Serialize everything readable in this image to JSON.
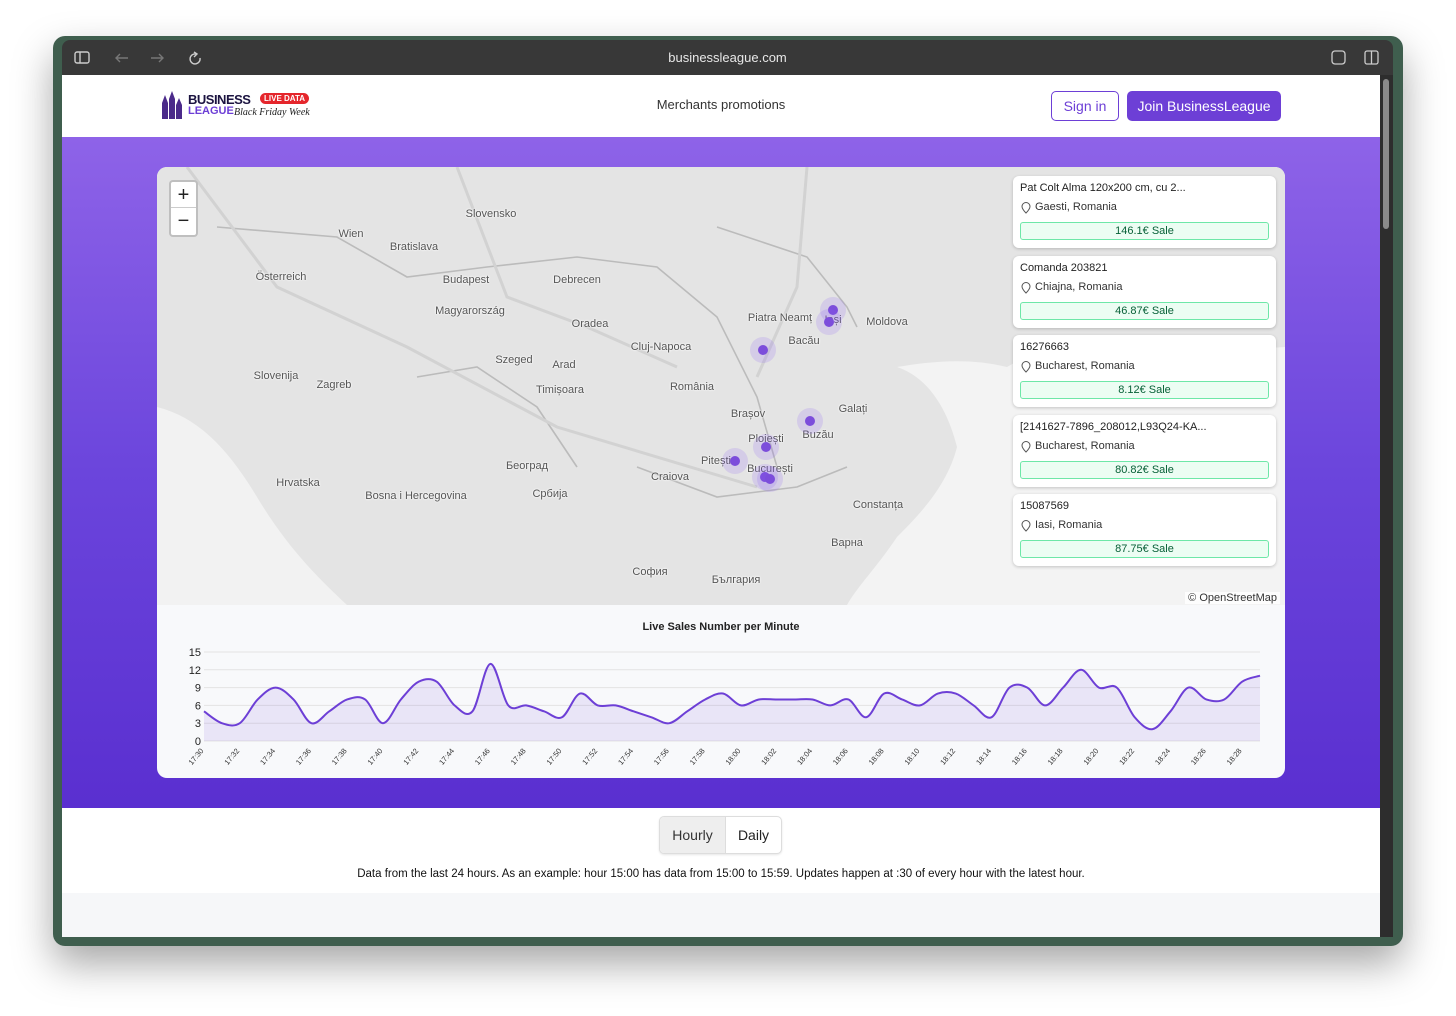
{
  "browser": {
    "url": "businessleague.com"
  },
  "header": {
    "logo": {
      "brand_top": "BUSINESS",
      "brand_bottom": "LEAGUE",
      "badge": "LIVE DATA",
      "tagline": "Black Friday Week"
    },
    "nav": "Merchants promotions",
    "sign_in": "Sign in",
    "join": "Join BusinessLeague"
  },
  "map": {
    "zoom_in": "+",
    "zoom_out": "−",
    "attribution": "© OpenStreetMap",
    "labels": [
      "Wien",
      "Bratislava",
      "Budapest",
      "Magyarország",
      "Slovensko",
      "Österreich",
      "Slovenija",
      "Zagreb",
      "Hrvatska",
      "Bosna i Hercegovina",
      "Београд",
      "Србија",
      "Cluj-Napoca",
      "România",
      "Brașov",
      "Ploiești",
      "București",
      "Craiova",
      "Constanța",
      "Galați",
      "Iași",
      "Moldova",
      "Timișoara",
      "Debrecen",
      "Szeged",
      "Варна",
      "София",
      "България",
      "Pitești",
      "Buzău",
      "Bacău",
      "Piatra Neamț",
      "Oradea",
      "Arad"
    ],
    "cards": [
      {
        "title": "Pat Colt Alma 120x200 cm, cu 2...",
        "location": "Gaesti, Romania",
        "amount": "146.1€ Sale"
      },
      {
        "title": "Comanda 203821",
        "location": "Chiajna, Romania",
        "amount": "46.87€ Sale"
      },
      {
        "title": "16276663",
        "location": "Bucharest, Romania",
        "amount": "8.12€ Sale"
      },
      {
        "title": "[2141627-7896_208012,L93Q24-KA...",
        "location": "Bucharest, Romania",
        "amount": "80.82€ Sale"
      },
      {
        "title": "15087569",
        "location": "Iasi, Romania",
        "amount": "87.75€ Sale"
      }
    ]
  },
  "chart_data": {
    "type": "line",
    "title": "Live Sales Number per Minute",
    "categories": [
      "17:30",
      null,
      "17:32",
      null,
      "17:34",
      null,
      "17:36",
      null,
      "17:38",
      null,
      "17:40",
      null,
      "17:42",
      null,
      "17:44",
      null,
      "17:46",
      null,
      "17:48",
      null,
      "17:50",
      null,
      "17:52",
      null,
      "17:54",
      null,
      "17:56",
      null,
      "17:58",
      null,
      "18:00",
      null,
      "18:02",
      null,
      "18:04",
      null,
      "18:06",
      null,
      "18:08",
      null,
      "18:10",
      null,
      "18:12",
      null,
      "18:14",
      null,
      "18:16",
      null,
      "18:18",
      null,
      "18:20",
      null,
      "18:22",
      null,
      "18:24",
      null,
      "18:26",
      null,
      "18:28",
      null
    ],
    "series": [
      {
        "name": "Sales",
        "color": "#6d3fd6",
        "values": [
          5,
          3,
          3,
          7,
          9,
          7,
          3,
          5,
          7,
          7,
          3,
          7,
          10,
          10,
          6,
          5,
          13,
          6,
          6,
          5,
          4,
          8,
          6,
          6,
          5,
          4,
          3,
          5,
          7,
          8,
          6,
          7,
          7,
          7,
          7,
          6,
          7,
          4,
          8,
          7,
          6,
          8,
          8,
          6,
          4,
          9,
          9,
          6,
          9,
          12,
          9,
          9,
          4,
          2,
          5,
          9,
          7,
          7,
          10,
          11
        ]
      }
    ],
    "ylim": [
      0,
      15
    ],
    "yticks": [
      0,
      3,
      6,
      9,
      12,
      15
    ],
    "grid": true
  },
  "tabs": [
    "Hourly",
    "Daily"
  ],
  "note": "Data from the last 24 hours. As an example: hour 15:00 has data from 15:00 to 15:59. Updates happen at :30 of every hour with the latest hour."
}
